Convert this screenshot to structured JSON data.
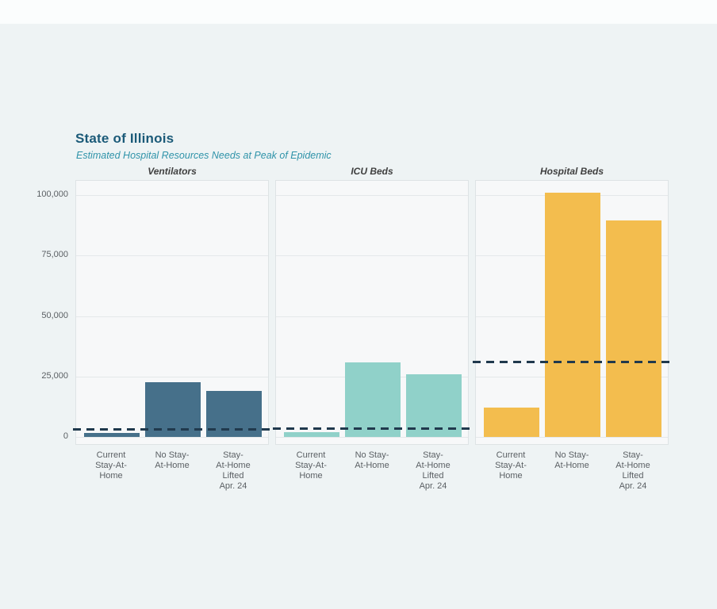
{
  "header": {
    "title": "State of Illinois",
    "subtitle": "Estimated Hospital Resources Needs at Peak of Epidemic"
  },
  "colors": {
    "page_background": "#eef3f4",
    "top_strip": "#fbfdfd",
    "title_text": "#1b5a78",
    "subtitle_text": "#2f93a9",
    "panel_background": "#f7f8f9",
    "panel_border": "#dee3e5",
    "gridline": "#e4e8ea",
    "axis_text": "#5a5f63",
    "ventilators_bar": "#46708a",
    "icu_beds_bar": "#90d1c9",
    "hospital_beds_bar": "#f3bd4e",
    "capacity_line": "#20394d"
  },
  "chart_data": {
    "type": "bar",
    "title": "State of Illinois",
    "subtitle": "Estimated Hospital Resources Needs at Peak of Epidemic",
    "categories": [
      [
        "Current",
        "Stay-At-",
        "Home"
      ],
      [
        "No Stay-",
        "At-Home"
      ],
      [
        "Stay-",
        "At-Home",
        "Lifted",
        "Apr. 24"
      ]
    ],
    "panels": [
      {
        "label": "Ventilators",
        "bar_color": "#46708a",
        "values": [
          1800,
          22500,
          19000
        ],
        "capacity_line": 3200
      },
      {
        "label": "ICU Beds",
        "bar_color": "#90d1c9",
        "values": [
          2100,
          31000,
          26000
        ],
        "capacity_line": 3400
      },
      {
        "label": "Hospital Beds",
        "bar_color": "#f3bd4e",
        "values": [
          12000,
          101000,
          89500
        ],
        "capacity_line": 31000
      }
    ],
    "y_ticks": [
      0,
      25000,
      50000,
      75000,
      100000
    ],
    "y_tick_labels": [
      "0",
      "25,000",
      "50,000",
      "75,000",
      "100,000"
    ],
    "ylim": [
      0,
      105000
    ],
    "xlabel": "",
    "ylabel": "",
    "grid": true,
    "legend": "none",
    "capacity_line_style": "dashed",
    "capacity_line_color": "#20394d"
  }
}
